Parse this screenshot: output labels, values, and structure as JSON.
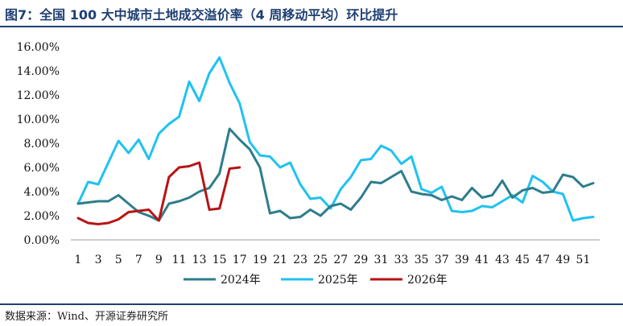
{
  "title": "图7：全国 100 大中城市土地成交溢价率（4 周移动平均）环比提升",
  "source": "数据来源：Wind、开源证券研究所",
  "chart_data": {
    "type": "line",
    "title": "图7：全国 100 大中城市土地成交溢价率（4 周移动平均）环比提升",
    "xlabel": "",
    "ylabel": "",
    "ylim": [
      0,
      16
    ],
    "yticks": [
      "0.00%",
      "2.00%",
      "4.00%",
      "6.00%",
      "8.00%",
      "10.00%",
      "12.00%",
      "14.00%",
      "16.00%"
    ],
    "yticks_values": [
      0,
      2,
      4,
      6,
      8,
      10,
      12,
      14,
      16
    ],
    "xlim": [
      1,
      52
    ],
    "xticks": [
      1,
      3,
      5,
      7,
      9,
      11,
      13,
      15,
      17,
      19,
      21,
      23,
      25,
      27,
      29,
      31,
      33,
      35,
      37,
      39,
      41,
      43,
      45,
      47,
      49,
      51
    ],
    "grid": false,
    "legend": "bottom",
    "series": [
      {
        "name": "2024年",
        "color": "#2e7d8c",
        "x": [
          1,
          2,
          3,
          4,
          5,
          6,
          7,
          8,
          9,
          10,
          11,
          12,
          13,
          14,
          15,
          16,
          17,
          18,
          19,
          20,
          21,
          22,
          23,
          24,
          25,
          26,
          27,
          28,
          29,
          30,
          31,
          32,
          33,
          34,
          35,
          36,
          37,
          38,
          39,
          40,
          41,
          42,
          43,
          44,
          45,
          46,
          47,
          48,
          49,
          50,
          51,
          52
        ],
        "values": [
          3.0,
          3.1,
          3.2,
          3.2,
          3.7,
          3.0,
          2.3,
          2.0,
          1.6,
          3.0,
          3.2,
          3.5,
          4.0,
          4.3,
          5.5,
          9.2,
          8.3,
          7.5,
          6.0,
          2.2,
          2.4,
          1.8,
          1.9,
          2.5,
          2.0,
          2.8,
          3.0,
          2.5,
          3.5,
          4.8,
          4.7,
          5.2,
          5.7,
          4.0,
          3.8,
          3.7,
          3.3,
          3.6,
          3.3,
          4.3,
          3.5,
          3.7,
          4.9,
          3.5,
          4.1,
          4.3,
          3.9,
          4.0,
          5.4,
          5.2,
          4.4,
          4.7
        ]
      },
      {
        "name": "2025年",
        "color": "#1fc2f0",
        "x": [
          1,
          2,
          3,
          4,
          5,
          6,
          7,
          8,
          9,
          10,
          11,
          12,
          13,
          14,
          15,
          16,
          17,
          18,
          19,
          20,
          21,
          22,
          23,
          24,
          25,
          26,
          27,
          28,
          29,
          30,
          31,
          32,
          33,
          34,
          35,
          36,
          37,
          38,
          39,
          40,
          41,
          42,
          43,
          44,
          45,
          46,
          47,
          48,
          49,
          50,
          51,
          52
        ],
        "values": [
          3.0,
          4.8,
          4.6,
          6.4,
          8.2,
          7.2,
          8.3,
          6.7,
          8.8,
          9.6,
          10.2,
          13.1,
          11.5,
          13.8,
          15.1,
          13.0,
          11.3,
          8.1,
          7.0,
          6.9,
          6.0,
          6.4,
          4.6,
          3.4,
          3.5,
          2.6,
          4.2,
          5.2,
          6.6,
          6.7,
          7.8,
          7.4,
          6.3,
          6.9,
          4.2,
          3.9,
          4.4,
          2.4,
          2.3,
          2.4,
          2.8,
          2.7,
          3.2,
          3.7,
          3.1,
          5.3,
          4.8,
          4.0,
          3.8,
          1.6,
          1.8,
          1.9
        ]
      },
      {
        "name": "2026年",
        "color": "#b81414",
        "x": [
          1,
          2,
          3,
          4,
          5,
          6,
          7,
          8,
          9,
          10,
          11,
          12,
          13,
          14,
          15,
          16,
          17
        ],
        "values": [
          1.8,
          1.4,
          1.3,
          1.4,
          1.7,
          2.3,
          2.4,
          2.5,
          1.6,
          5.2,
          6.0,
          6.1,
          6.4,
          2.5,
          2.6,
          5.9,
          6.0
        ]
      }
    ]
  }
}
